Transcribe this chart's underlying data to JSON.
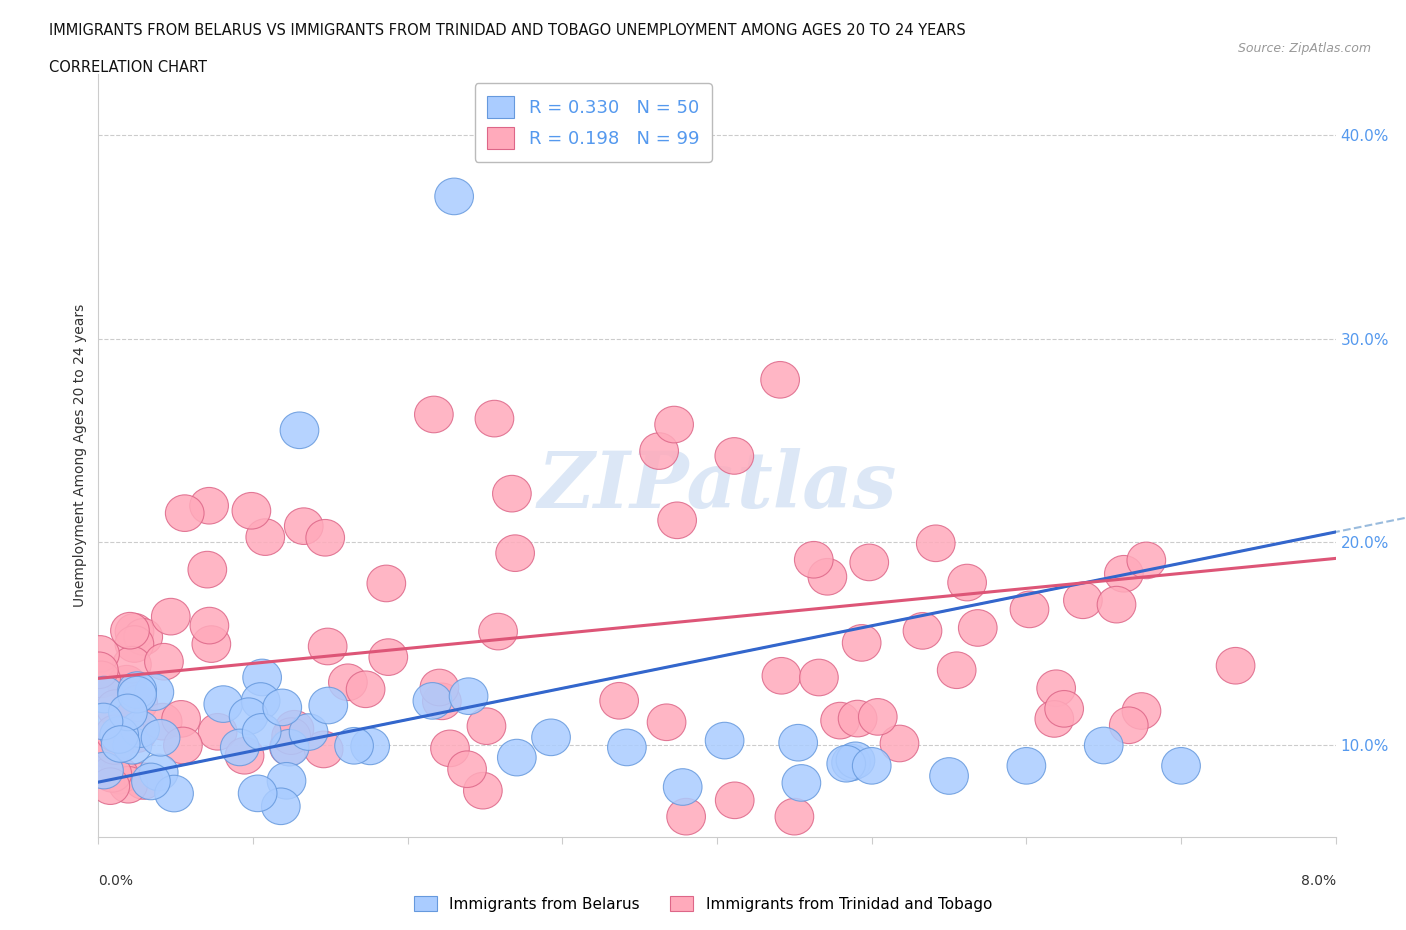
{
  "title_line1": "IMMIGRANTS FROM BELARUS VS IMMIGRANTS FROM TRINIDAD AND TOBAGO UNEMPLOYMENT AMONG AGES 20 TO 24 YEARS",
  "title_line2": "CORRELATION CHART",
  "source": "Source: ZipAtlas.com",
  "ylabel": "Unemployment Among Ages 20 to 24 years",
  "ytick_labels": [
    "10.0%",
    "20.0%",
    "30.0%",
    "40.0%"
  ],
  "ytick_values": [
    0.1,
    0.2,
    0.3,
    0.4
  ],
  "xmin": 0.0,
  "xmax": 0.08,
  "ymin": 0.055,
  "ymax": 0.43,
  "legend_entry1": {
    "R": "0.330",
    "N": "50"
  },
  "legend_entry2": {
    "R": "0.198",
    "N": "99"
  },
  "trendline1_color": "#3366cc",
  "trendline2_color": "#dd5577",
  "trendline_dashed_color": "#99bbdd",
  "belarus_color": "#aaccff",
  "belarus_edge": "#6699dd",
  "trinidad_color": "#ffaabb",
  "trinidad_edge": "#dd6688",
  "legend1_color": "#aaccff",
  "legend2_color": "#ffaabb",
  "watermark_color": "#c5d8f0",
  "grid_color": "#cccccc",
  "ytick_color": "#5599ee",
  "background": "#ffffff"
}
